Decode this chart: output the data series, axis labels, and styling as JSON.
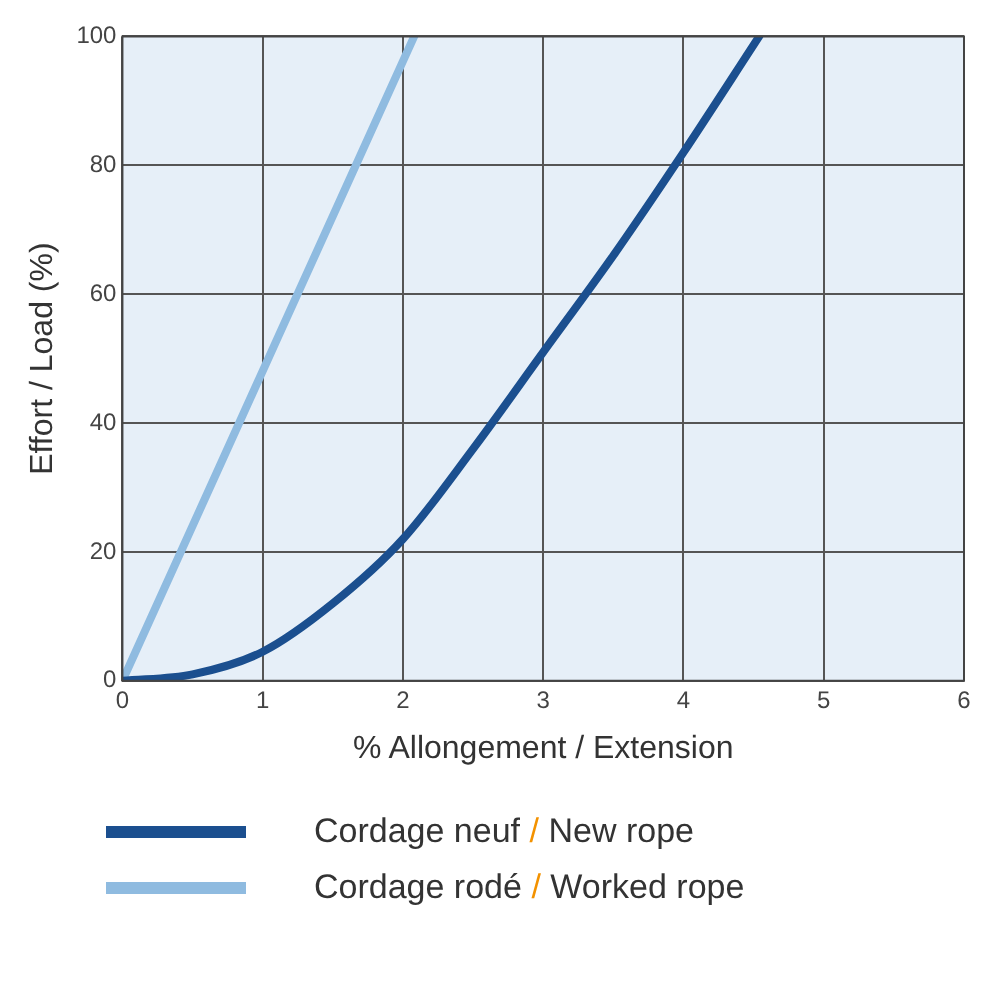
{
  "chart_data": {
    "type": "line",
    "xlabel": "% Allongement / Extension",
    "ylabel": "Effort / Load (%)",
    "xlim": [
      0,
      6
    ],
    "xticks": [
      0,
      1,
      2,
      3,
      4,
      5,
      6
    ],
    "ylim": [
      0,
      100
    ],
    "yticks": [
      0,
      20,
      40,
      60,
      80,
      100
    ],
    "grid": true,
    "legend": "bottom",
    "marker": "none",
    "line_style": "solid",
    "series": [
      {
        "name": "Cordage neuf / New rope",
        "color": "#1b4f8f",
        "x": [
          0,
          0.5,
          1,
          1.5,
          2,
          2.5,
          3,
          3.5,
          4,
          4.54
        ],
        "values": [
          0,
          1,
          4.5,
          12,
          22,
          36,
          51,
          66,
          82,
          100
        ]
      },
      {
        "name": "Cordage rodé / Worked rope",
        "color": "#8fbbe0",
        "x": [
          0,
          2.08
        ],
        "values": [
          0,
          100
        ]
      }
    ]
  }
}
